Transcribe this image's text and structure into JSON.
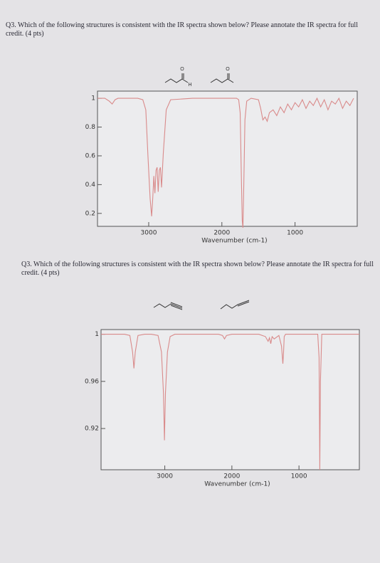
{
  "questions": [
    {
      "text": "Q3. Which of the following structures is consistent with the IR spectra shown below? Please annotate the IR spectra for full credit. (4 pts)",
      "atom_labels": [
        "O",
        "H",
        "O"
      ]
    },
    {
      "text": "Q3. Which of the following structures is consistent with the IR spectra shown below? Please annotate the IR spectra for full credit. (4 pts)"
    }
  ],
  "chart_data": [
    {
      "type": "line",
      "xlabel": "Wavenumber (cm-1)",
      "color": "#d98a8a",
      "xlim": [
        3700,
        150
      ],
      "ylim": [
        0.11,
        1.05
      ],
      "xticks": [
        3000,
        2000,
        1000
      ],
      "yticks": [
        1,
        0.8,
        0.6,
        0.4,
        0.2
      ],
      "x": [
        3700,
        3600,
        3540,
        3500,
        3460,
        3420,
        3300,
        3150,
        3080,
        3040,
        3010,
        2980,
        2960,
        2945,
        2930,
        2915,
        2900,
        2885,
        2870,
        2855,
        2840,
        2825,
        2800,
        2760,
        2700,
        2400,
        2000,
        1800,
        1770,
        1750,
        1735,
        1722,
        1712,
        1700,
        1685,
        1660,
        1600,
        1500,
        1470,
        1440,
        1410,
        1380,
        1350,
        1300,
        1250,
        1200,
        1150,
        1100,
        1050,
        1000,
        950,
        900,
        850,
        800,
        750,
        700,
        650,
        600,
        550,
        500,
        450,
        400,
        350,
        300,
        250,
        200
      ],
      "values": [
        1.0,
        1.0,
        0.98,
        0.96,
        0.99,
        1.0,
        1.0,
        1.0,
        0.99,
        0.92,
        0.6,
        0.3,
        0.18,
        0.3,
        0.46,
        0.34,
        0.5,
        0.52,
        0.35,
        0.5,
        0.52,
        0.38,
        0.62,
        0.92,
        0.99,
        1.0,
        1.0,
        1.0,
        0.99,
        0.9,
        0.5,
        0.15,
        0.1,
        0.4,
        0.85,
        0.98,
        1.0,
        0.99,
        0.93,
        0.85,
        0.87,
        0.84,
        0.9,
        0.92,
        0.88,
        0.94,
        0.9,
        0.96,
        0.92,
        0.97,
        0.94,
        0.99,
        0.93,
        0.98,
        0.95,
        1.0,
        0.94,
        0.99,
        0.92,
        0.98,
        0.96,
        1.0,
        0.93,
        0.98,
        0.95,
        1.0
      ]
    },
    {
      "type": "line",
      "xlabel": "Wavenumber (cm-1)",
      "color": "#d98a8a",
      "xlim": [
        3950,
        100
      ],
      "ylim": [
        0.885,
        1.004
      ],
      "xticks": [
        3000,
        2000,
        1000
      ],
      "yticks": [
        1,
        0.96,
        0.92
      ],
      "x": [
        3950,
        3800,
        3600,
        3520,
        3480,
        3460,
        3440,
        3400,
        3300,
        3200,
        3100,
        3050,
        3020,
        3005,
        2990,
        2960,
        2920,
        2850,
        2700,
        2400,
        2200,
        2140,
        2110,
        2080,
        2000,
        1800,
        1600,
        1500,
        1460,
        1440,
        1420,
        1400,
        1370,
        1300,
        1260,
        1240,
        1230,
        1220,
        1200,
        1150,
        1000,
        800,
        720,
        700,
        690,
        680,
        660,
        600,
        400,
        200,
        100
      ],
      "values": [
        1.0,
        1.0,
        1.0,
        0.999,
        0.985,
        0.971,
        0.985,
        0.999,
        1.0,
        1.0,
        0.999,
        0.985,
        0.95,
        0.91,
        0.95,
        0.985,
        0.998,
        1.0,
        1.0,
        1.0,
        1.0,
        0.999,
        0.996,
        0.999,
        1.0,
        1.0,
        1.0,
        0.998,
        0.994,
        0.997,
        0.992,
        0.998,
        0.996,
        0.999,
        0.99,
        0.975,
        0.985,
        0.998,
        1.0,
        1.0,
        1.0,
        1.0,
        1.0,
        0.98,
        0.885,
        0.96,
        1.0,
        1.0,
        1.0,
        1.0,
        1.0
      ]
    }
  ]
}
